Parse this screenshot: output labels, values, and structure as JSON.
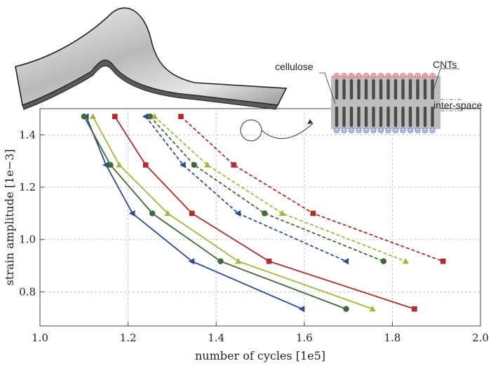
{
  "chart_data": {
    "type": "line",
    "xlabel": "number of cycles [1e5]",
    "ylabel": "strain amplitude [1e−3]",
    "xlim": [
      1.0,
      2.0
    ],
    "ylim": [
      0.67,
      1.5
    ],
    "xticks": [
      "1.0",
      "1.2",
      "1.4",
      "1.6",
      "1.8",
      "2.0"
    ],
    "xtick_values": [
      1.0,
      1.2,
      1.4,
      1.6,
      1.8,
      2.0
    ],
    "yticks": [
      "0.8",
      "1.0",
      "1.2",
      "1.4"
    ],
    "ytick_values": [
      0.8,
      1.0,
      1.2,
      1.4
    ],
    "grid": true,
    "series": [
      {
        "name": "blue-solid",
        "color": "#2a4a9c",
        "dash": false,
        "marker": "left-triangle",
        "x": [
          1.105,
          1.15,
          1.21,
          1.345,
          1.595
        ],
        "y": [
          1.47,
          1.285,
          1.1,
          0.917,
          0.735
        ]
      },
      {
        "name": "green-solid",
        "color": "#3e6b3a",
        "dash": false,
        "marker": "circle",
        "x": [
          1.1,
          1.16,
          1.255,
          1.41,
          1.695
        ],
        "y": [
          1.47,
          1.285,
          1.1,
          0.917,
          0.735
        ]
      },
      {
        "name": "olive-solid",
        "color": "#a8b53a",
        "dash": false,
        "marker": "up-triangle",
        "x": [
          1.12,
          1.18,
          1.29,
          1.45,
          1.755
        ],
        "y": [
          1.47,
          1.285,
          1.1,
          0.917,
          0.735
        ]
      },
      {
        "name": "red-solid",
        "color": "#b42a2a",
        "dash": false,
        "marker": "square",
        "x": [
          1.17,
          1.24,
          1.345,
          1.52,
          1.85
        ],
        "y": [
          1.47,
          1.285,
          1.1,
          0.917,
          0.735
        ]
      },
      {
        "name": "blue-dashed",
        "color": "#2a4a9c",
        "dash": true,
        "marker": "left-triangle",
        "x": [
          1.24,
          1.325,
          1.45,
          1.695
        ],
        "y": [
          1.47,
          1.285,
          1.1,
          0.917
        ]
      },
      {
        "name": "green-dashed",
        "color": "#3e6b3a",
        "dash": true,
        "marker": "circle",
        "x": [
          1.25,
          1.35,
          1.51,
          1.78
        ],
        "y": [
          1.47,
          1.285,
          1.1,
          0.917
        ]
      },
      {
        "name": "olive-dashed",
        "color": "#a8b53a",
        "dash": true,
        "marker": "up-triangle",
        "x": [
          1.26,
          1.38,
          1.55,
          1.83
        ],
        "y": [
          1.47,
          1.285,
          1.1,
          0.917
        ]
      },
      {
        "name": "red-dashed",
        "color": "#b42a2a",
        "dash": true,
        "marker": "square",
        "x": [
          1.32,
          1.44,
          1.62,
          1.915
        ],
        "y": [
          1.47,
          1.285,
          1.1,
          0.917
        ]
      }
    ]
  },
  "inset": {
    "labels": {
      "cellulose": "cellulose",
      "cnts": "CNTs",
      "interspace": "inter-space"
    },
    "charge_positive": "+",
    "charge_negative": "−",
    "colors": {
      "fill": "#bdbdbd",
      "rod": "#4a4a4a",
      "positive": "#d9534f",
      "negative": "#5b6abf"
    }
  }
}
